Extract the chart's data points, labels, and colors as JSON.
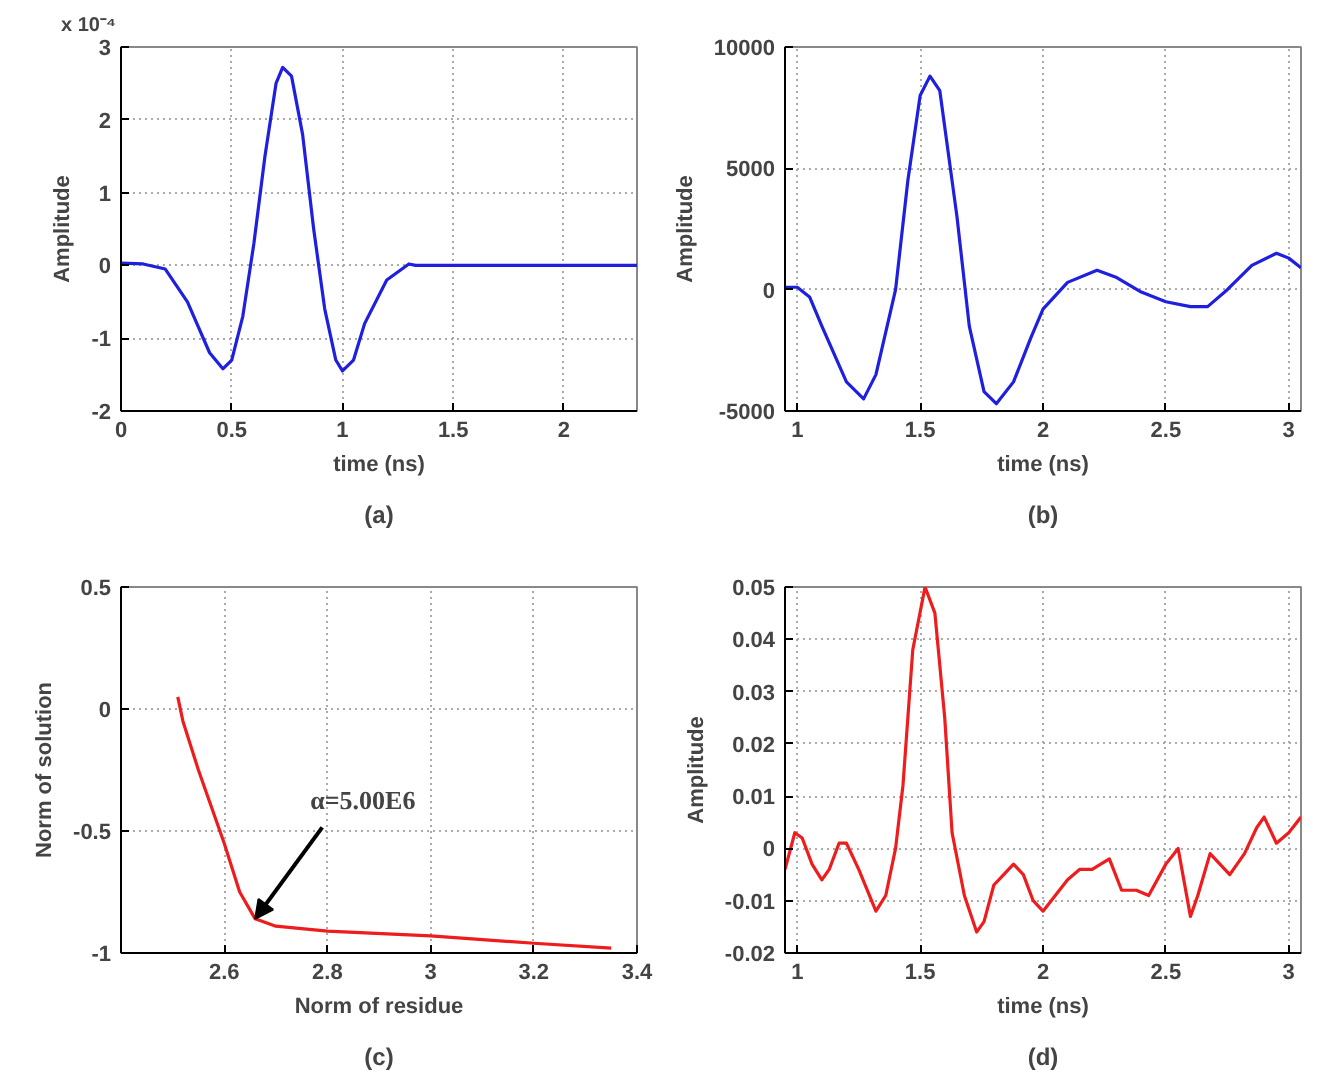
{
  "chart_data": [
    {
      "type": "line",
      "title": "(a)",
      "xlabel": "time (ns)",
      "ylabel": "Amplitude",
      "annotations": [
        "x 10⁻⁴"
      ],
      "xlim": [
        0,
        2.33
      ],
      "xticks": [
        0,
        0.5,
        1,
        1.5,
        2
      ],
      "ylim": [
        -2,
        3
      ],
      "yticks": [
        -2,
        -1,
        0,
        1,
        2,
        3
      ],
      "grid": true,
      "series": [
        {
          "color": "#1f1fe0",
          "x": [
            0,
            0.1,
            0.2,
            0.3,
            0.4,
            0.46,
            0.5,
            0.55,
            0.6,
            0.65,
            0.7,
            0.73,
            0.77,
            0.82,
            0.87,
            0.92,
            0.97,
            1.0,
            1.05,
            1.1,
            1.2,
            1.3,
            1.33,
            2.33
          ],
          "values": [
            0.03,
            0.02,
            -0.05,
            -0.5,
            -1.2,
            -1.42,
            -1.3,
            -0.7,
            0.3,
            1.5,
            2.5,
            2.72,
            2.6,
            1.8,
            0.5,
            -0.6,
            -1.3,
            -1.45,
            -1.3,
            -0.8,
            -0.2,
            0.02,
            0,
            0
          ]
        }
      ]
    },
    {
      "type": "line",
      "title": "(b)",
      "xlabel": "time (ns)",
      "ylabel": "Amplitude",
      "xlim": [
        0.95,
        3.05
      ],
      "xticks": [
        1,
        1.5,
        2,
        2.5,
        3
      ],
      "ylim": [
        -5000,
        10000
      ],
      "yticks": [
        -5000,
        0,
        5000,
        10000
      ],
      "grid": true,
      "series": [
        {
          "color": "#1f1fe0",
          "x": [
            0.95,
            1.0,
            1.05,
            1.1,
            1.2,
            1.27,
            1.32,
            1.4,
            1.45,
            1.5,
            1.54,
            1.58,
            1.65,
            1.7,
            1.76,
            1.81,
            1.88,
            1.95,
            2.0,
            2.1,
            2.22,
            2.3,
            2.4,
            2.5,
            2.6,
            2.67,
            2.75,
            2.85,
            2.95,
            3.0,
            3.05
          ],
          "values": [
            100,
            100,
            -300,
            -1500,
            -3800,
            -4500,
            -3500,
            0,
            4500,
            8000,
            8800,
            8200,
            3000,
            -1500,
            -4200,
            -4700,
            -3800,
            -2000,
            -800,
            300,
            800,
            500,
            -100,
            -500,
            -700,
            -700,
            0,
            1000,
            1500,
            1300,
            900
          ]
        }
      ]
    },
    {
      "type": "line",
      "title": "(c)",
      "xlabel": "Norm of residue",
      "ylabel": "Norm of solution",
      "annotations": [
        {
          "text": "α=5.00E6",
          "x": 2.66,
          "y": -0.86
        }
      ],
      "xlim": [
        2.4,
        3.4
      ],
      "xticks": [
        2.6,
        2.8,
        3,
        3.2,
        3.4
      ],
      "ylim": [
        -1,
        0.5
      ],
      "yticks": [
        -1,
        -0.5,
        0,
        0.5
      ],
      "grid": true,
      "series": [
        {
          "color": "#ee1c1c",
          "x": [
            2.51,
            2.52,
            2.55,
            2.6,
            2.63,
            2.66,
            2.7,
            2.8,
            3.0,
            3.2,
            3.35
          ],
          "values": [
            0.05,
            -0.05,
            -0.25,
            -0.55,
            -0.75,
            -0.86,
            -0.89,
            -0.91,
            -0.93,
            -0.96,
            -0.98
          ]
        }
      ]
    },
    {
      "type": "line",
      "title": "(d)",
      "xlabel": "time (ns)",
      "ylabel": "Amplitude",
      "xlim": [
        0.95,
        3.05
      ],
      "xticks": [
        1,
        1.5,
        2,
        2.5,
        3
      ],
      "ylim": [
        -0.02,
        0.05
      ],
      "yticks": [
        -0.02,
        -0.01,
        0,
        0.01,
        0.02,
        0.03,
        0.04,
        0.05
      ],
      "grid": true,
      "series": [
        {
          "color": "#ee1c1c",
          "x": [
            0.95,
            0.99,
            1.02,
            1.06,
            1.1,
            1.13,
            1.17,
            1.2,
            1.25,
            1.32,
            1.36,
            1.4,
            1.43,
            1.47,
            1.52,
            1.56,
            1.6,
            1.63,
            1.68,
            1.73,
            1.76,
            1.8,
            1.84,
            1.88,
            1.92,
            1.96,
            2.0,
            2.05,
            2.1,
            2.15,
            2.2,
            2.27,
            2.32,
            2.38,
            2.43,
            2.5,
            2.55,
            2.6,
            2.63,
            2.68,
            2.72,
            2.76,
            2.82,
            2.87,
            2.9,
            2.95,
            3.0,
            3.05
          ],
          "values": [
            -0.004,
            0.003,
            0.002,
            -0.003,
            -0.006,
            -0.004,
            0.001,
            0.001,
            -0.004,
            -0.012,
            -0.009,
            0,
            0.012,
            0.038,
            0.05,
            0.045,
            0.025,
            0.003,
            -0.009,
            -0.016,
            -0.014,
            -0.007,
            -0.005,
            -0.003,
            -0.005,
            -0.01,
            -0.012,
            -0.009,
            -0.006,
            -0.004,
            -0.004,
            -0.002,
            -0.008,
            -0.008,
            -0.009,
            -0.003,
            0,
            -0.013,
            -0.009,
            -0.001,
            -0.003,
            -0.005,
            -0.001,
            0.004,
            0.006,
            0.001,
            0.003,
            0.006
          ]
        }
      ]
    }
  ]
}
